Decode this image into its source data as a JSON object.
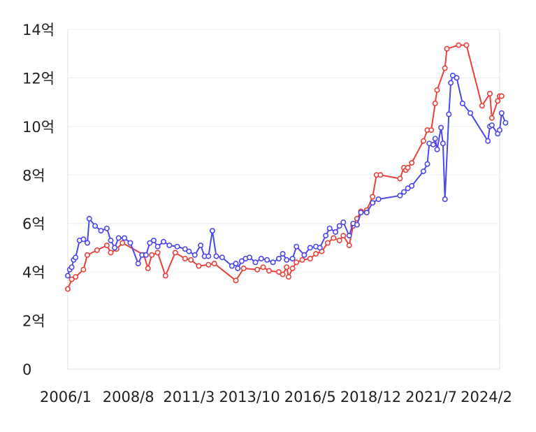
{
  "chart_data": {
    "type": "line",
    "title": "",
    "xlabel": "",
    "ylabel": "",
    "ylim": [
      0,
      14
    ],
    "y_unit": "억",
    "y_ticks": [
      {
        "value": 0,
        "label": "0"
      },
      {
        "value": 2,
        "label": "2억"
      },
      {
        "value": 4,
        "label": "4억"
      },
      {
        "value": 6,
        "label": "6억"
      },
      {
        "value": 8,
        "label": "8억"
      },
      {
        "value": 10,
        "label": "10억"
      },
      {
        "value": 12,
        "label": "12억"
      },
      {
        "value": 14,
        "label": "14억"
      }
    ],
    "x_range": [
      "2006/1",
      "2024/6"
    ],
    "x_ticks": [
      "2006/1",
      "2008/8",
      "2011/3",
      "2013/10",
      "2016/5",
      "2018/12",
      "2021/7",
      "2024/2"
    ],
    "grid": true,
    "legend": "none",
    "series": [
      {
        "color": "#e8403a",
        "points": [
          [
            "2006/1",
            3.3
          ],
          [
            "2006/3",
            3.7
          ],
          [
            "2006/5",
            3.8
          ],
          [
            "2006/9",
            4.1
          ],
          [
            "2006/11",
            4.7
          ],
          [
            "2007/4",
            4.9
          ],
          [
            "2007/9",
            5.1
          ],
          [
            "2007/11",
            4.8
          ],
          [
            "2008/2",
            4.95
          ],
          [
            "2008/5",
            5.2
          ],
          [
            "2009/4",
            4.7
          ],
          [
            "2009/6",
            4.15
          ],
          [
            "2009/8",
            4.7
          ],
          [
            "2009/11",
            4.8
          ],
          [
            "2010/3",
            3.85
          ],
          [
            "2010/8",
            4.8
          ],
          [
            "2011/1",
            4.55
          ],
          [
            "2011/4",
            4.5
          ],
          [
            "2011/8",
            4.25
          ],
          [
            "2012/1",
            4.3
          ],
          [
            "2012/4",
            4.35
          ],
          [
            "2013/3",
            3.65
          ],
          [
            "2013/7",
            4.15
          ],
          [
            "2014/2",
            4.1
          ],
          [
            "2014/5",
            4.2
          ],
          [
            "2014/8",
            4.05
          ],
          [
            "2015/1",
            4.0
          ],
          [
            "2015/3",
            3.9
          ],
          [
            "2015/5",
            4.2
          ],
          [
            "2015/6",
            3.8
          ],
          [
            "2015/8",
            4.15
          ],
          [
            "2015/10",
            4.4
          ],
          [
            "2016/1",
            4.5
          ],
          [
            "2016/5",
            4.55
          ],
          [
            "2016/8",
            4.75
          ],
          [
            "2016/11",
            4.85
          ],
          [
            "2017/2",
            5.2
          ],
          [
            "2017/5",
            5.4
          ],
          [
            "2017/8",
            5.3
          ],
          [
            "2017/10",
            5.5
          ],
          [
            "2018/1",
            5.1
          ],
          [
            "2018/3",
            5.9
          ],
          [
            "2018/5",
            6.2
          ],
          [
            "2018/7",
            6.5
          ],
          [
            "2018/10",
            6.55
          ],
          [
            "2019/1",
            7.1
          ],
          [
            "2019/3",
            8.0
          ],
          [
            "2019/5",
            8.0
          ],
          [
            "2020/3",
            7.85
          ],
          [
            "2020/5",
            8.3
          ],
          [
            "2020/6",
            8.2
          ],
          [
            "2020/7",
            8.3
          ],
          [
            "2020/9",
            8.5
          ],
          [
            "2021/3",
            9.4
          ],
          [
            "2021/5",
            9.85
          ],
          [
            "2021/7",
            9.85
          ],
          [
            "2021/9",
            10.95
          ],
          [
            "2021/10",
            11.5
          ],
          [
            "2022/2",
            12.4
          ],
          [
            "2022/3",
            13.2
          ],
          [
            "2022/9",
            13.35
          ],
          [
            "2023/1",
            13.35
          ],
          [
            "2023/9",
            10.85
          ],
          [
            "2024/1",
            11.35
          ],
          [
            "2024/2",
            10.35
          ],
          [
            "2024/5",
            11.05
          ],
          [
            "2024/6",
            11.25
          ],
          [
            "2024/7",
            11.25
          ]
        ]
      },
      {
        "color": "#4c49e6",
        "points": [
          [
            "2006/1",
            3.85
          ],
          [
            "2006/2",
            4.1
          ],
          [
            "2006/3",
            4.2
          ],
          [
            "2006/4",
            4.5
          ],
          [
            "2006/5",
            4.6
          ],
          [
            "2006/7",
            5.3
          ],
          [
            "2006/9",
            5.35
          ],
          [
            "2006/11",
            5.2
          ],
          [
            "2006/12",
            6.2
          ],
          [
            "2007/3",
            5.9
          ],
          [
            "2007/6",
            5.7
          ],
          [
            "2007/9",
            5.8
          ],
          [
            "2007/11",
            5.3
          ],
          [
            "2008/1",
            5.0
          ],
          [
            "2008/3",
            5.4
          ],
          [
            "2008/6",
            5.4
          ],
          [
            "2008/9",
            5.2
          ],
          [
            "2009/1",
            4.35
          ],
          [
            "2009/3",
            4.7
          ],
          [
            "2009/5",
            4.7
          ],
          [
            "2009/7",
            5.2
          ],
          [
            "2009/9",
            5.3
          ],
          [
            "2009/11",
            5.05
          ],
          [
            "2010/2",
            5.25
          ],
          [
            "2010/5",
            5.1
          ],
          [
            "2010/9",
            5.05
          ],
          [
            "2011/1",
            4.95
          ],
          [
            "2011/3",
            4.85
          ],
          [
            "2011/6",
            4.7
          ],
          [
            "2011/9",
            5.1
          ],
          [
            "2011/11",
            4.65
          ],
          [
            "2012/1",
            4.65
          ],
          [
            "2012/3",
            5.7
          ],
          [
            "2012/5",
            4.65
          ],
          [
            "2012/8",
            4.6
          ],
          [
            "2013/1",
            4.25
          ],
          [
            "2013/3",
            4.35
          ],
          [
            "2013/4",
            4.15
          ],
          [
            "2013/6",
            4.45
          ],
          [
            "2013/8",
            4.55
          ],
          [
            "2013/10",
            4.6
          ],
          [
            "2014/1",
            4.4
          ],
          [
            "2014/4",
            4.55
          ],
          [
            "2014/7",
            4.5
          ],
          [
            "2014/10",
            4.4
          ],
          [
            "2015/1",
            4.55
          ],
          [
            "2015/3",
            4.75
          ],
          [
            "2015/5",
            4.5
          ],
          [
            "2015/8",
            4.55
          ],
          [
            "2015/10",
            5.05
          ],
          [
            "2016/2",
            4.7
          ],
          [
            "2016/5",
            5.0
          ],
          [
            "2016/8",
            5.05
          ],
          [
            "2016/10",
            5.0
          ],
          [
            "2017/1",
            5.5
          ],
          [
            "2017/3",
            5.8
          ],
          [
            "2017/6",
            5.65
          ],
          [
            "2017/8",
            5.9
          ],
          [
            "2017/10",
            6.05
          ],
          [
            "2018/1",
            5.5
          ],
          [
            "2018/3",
            6.0
          ],
          [
            "2018/5",
            5.95
          ],
          [
            "2018/7",
            6.45
          ],
          [
            "2018/10",
            6.45
          ],
          [
            "2019/1",
            6.85
          ],
          [
            "2019/4",
            7.0
          ],
          [
            "2020/3",
            7.15
          ],
          [
            "2020/5",
            7.3
          ],
          [
            "2020/7",
            7.45
          ],
          [
            "2020/9",
            7.55
          ],
          [
            "2021/3",
            8.15
          ],
          [
            "2021/5",
            8.45
          ],
          [
            "2021/6",
            9.3
          ],
          [
            "2021/8",
            9.25
          ],
          [
            "2021/9",
            9.5
          ],
          [
            "2021/10",
            9.05
          ],
          [
            "2021/12",
            9.95
          ],
          [
            "2022/1",
            9.3
          ],
          [
            "2022/2",
            7.0
          ],
          [
            "2022/4",
            10.5
          ],
          [
            "2022/5",
            11.8
          ],
          [
            "2022/6",
            12.1
          ],
          [
            "2022/8",
            12.0
          ],
          [
            "2022/11",
            10.95
          ],
          [
            "2023/3",
            10.55
          ],
          [
            "2023/12",
            9.4
          ],
          [
            "2024/1",
            10.0
          ],
          [
            "2024/2",
            10.05
          ],
          [
            "2024/5",
            9.7
          ],
          [
            "2024/6",
            9.85
          ],
          [
            "2024/7",
            10.55
          ],
          [
            "2024/9",
            10.15
          ]
        ]
      }
    ]
  }
}
